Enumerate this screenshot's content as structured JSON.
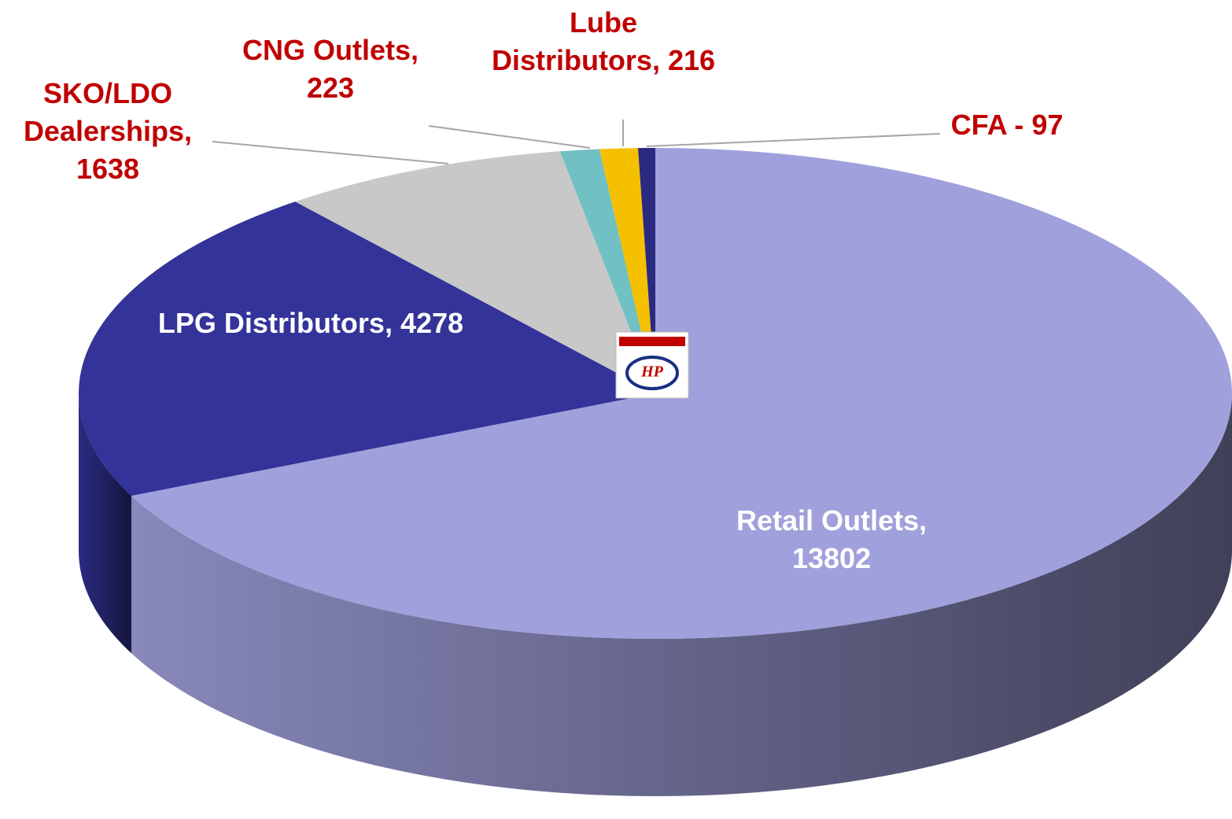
{
  "chart_data": {
    "type": "pie",
    "categories": [
      "Retail Outlets,",
      "LPG Distributors,",
      "SKO/LDO Dealerships,",
      "CNG Outlets,",
      "Lube Distributors,",
      "CFA -"
    ],
    "values": [
      13802,
      4278,
      1638,
      223,
      216,
      97
    ],
    "colors": [
      "#a0a0dc",
      "#333399",
      "#c8c8c8",
      "#70c0c4",
      "#f5c000",
      "#2a2a80"
    ],
    "logo_text": "HP"
  }
}
